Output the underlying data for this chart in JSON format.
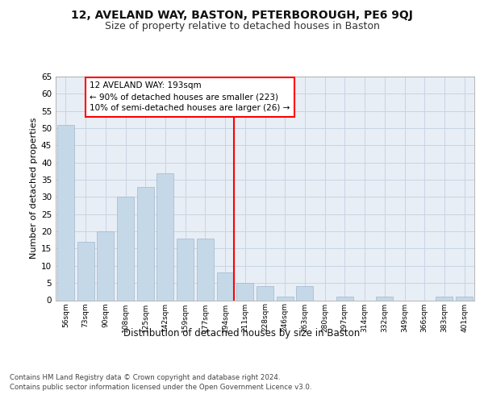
{
  "title1": "12, AVELAND WAY, BASTON, PETERBOROUGH, PE6 9QJ",
  "title2": "Size of property relative to detached houses in Baston",
  "xlabel": "Distribution of detached houses by size in Baston",
  "ylabel": "Number of detached properties",
  "categories": [
    "56sqm",
    "73sqm",
    "90sqm",
    "108sqm",
    "125sqm",
    "142sqm",
    "159sqm",
    "177sqm",
    "194sqm",
    "211sqm",
    "228sqm",
    "246sqm",
    "263sqm",
    "280sqm",
    "297sqm",
    "314sqm",
    "332sqm",
    "349sqm",
    "366sqm",
    "383sqm",
    "401sqm"
  ],
  "values": [
    51,
    17,
    20,
    30,
    33,
    37,
    18,
    18,
    8,
    5,
    4,
    1,
    4,
    0,
    1,
    0,
    1,
    0,
    0,
    1,
    1
  ],
  "bar_color": "#c5d8e8",
  "bar_edge_color": "#a0b8cc",
  "grid_color": "#c8d4e4",
  "background_color": "#e8eef5",
  "property_line_index": 8,
  "annotation_text": "12 AVELAND WAY: 193sqm\n← 90% of detached houses are smaller (223)\n10% of semi-detached houses are larger (26) →",
  "footnote1": "Contains HM Land Registry data © Crown copyright and database right 2024.",
  "footnote2": "Contains public sector information licensed under the Open Government Licence v3.0.",
  "ylim": [
    0,
    65
  ],
  "yticks": [
    0,
    5,
    10,
    15,
    20,
    25,
    30,
    35,
    40,
    45,
    50,
    55,
    60,
    65
  ]
}
